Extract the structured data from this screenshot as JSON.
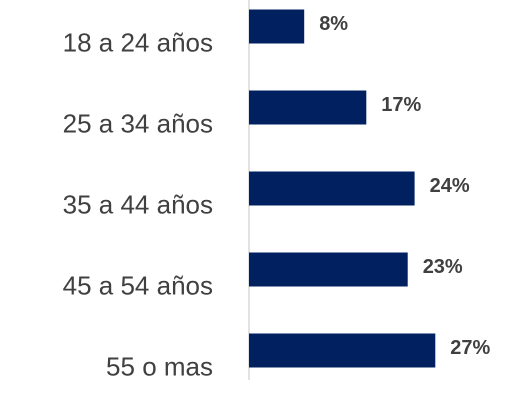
{
  "chart_data": {
    "type": "bar",
    "orientation": "horizontal",
    "categories": [
      "18 a 24 años",
      "25 a 34 años",
      "35 a 44 años",
      "45 a 54 años",
      "55 o mas"
    ],
    "values": [
      8,
      17,
      24,
      23,
      27
    ],
    "value_labels": [
      "8%",
      "17%",
      "24%",
      "23%",
      "27%"
    ],
    "color": "#002060",
    "xlim": [
      0,
      30
    ]
  }
}
